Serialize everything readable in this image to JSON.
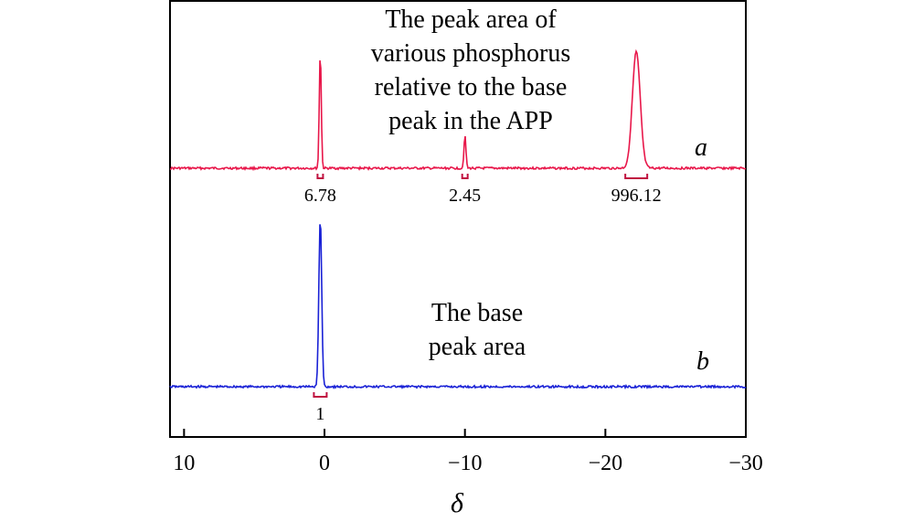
{
  "chart_data": {
    "type": "line",
    "xlabel": "δ",
    "xlim": [
      11,
      -30
    ],
    "x_ticks": [
      10,
      0,
      -10,
      -20,
      -30
    ],
    "x_tick_labels": [
      "10",
      "0",
      "−10",
      "−20",
      "−30"
    ],
    "colors": {
      "a": "#e8174a",
      "b": "#1a22d6",
      "bracket_a": "#c01040",
      "bracket_b": "#c01040"
    },
    "series": [
      {
        "name": "a",
        "peaks": [
          {
            "x": 0.3,
            "height": 0.85,
            "area_label": "6.78"
          },
          {
            "x": -10.0,
            "height": 0.24,
            "area_label": "2.45"
          },
          {
            "x": -22.2,
            "height": 0.85,
            "area_label": "996.12"
          }
        ]
      },
      {
        "name": "b",
        "peaks": [
          {
            "x": 0.3,
            "height": 1.0,
            "area_label": "1"
          }
        ]
      }
    ],
    "annotations": [
      "The peak area of",
      "various phosphorus",
      "relative to the base",
      "peak in the APP",
      "The base",
      "peak area"
    ]
  }
}
